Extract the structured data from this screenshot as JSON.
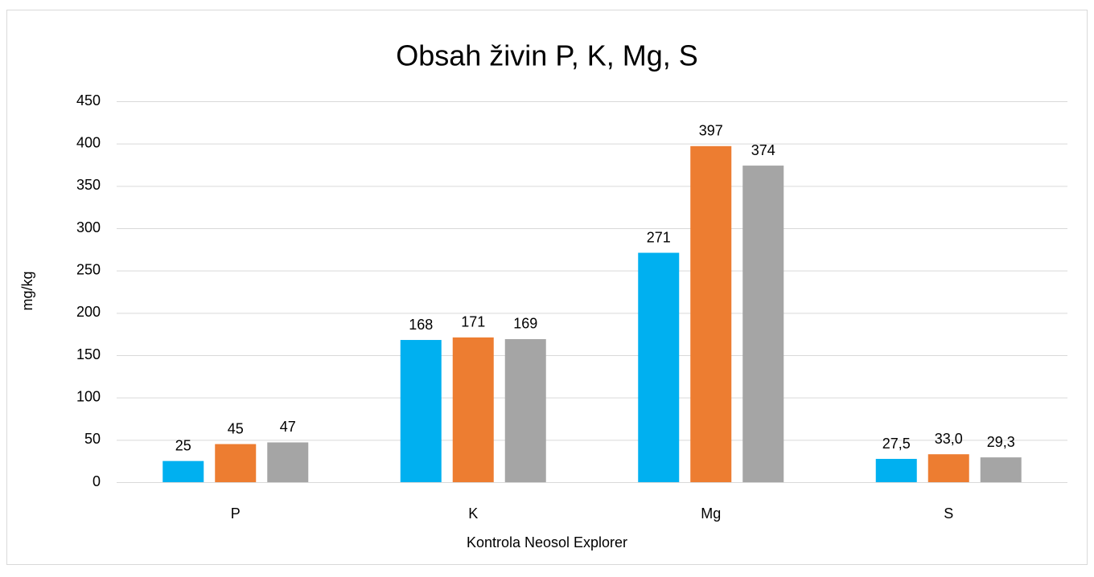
{
  "chart_data": {
    "type": "bar",
    "title": "Obsah živin P, K, Mg, S",
    "xlabel": "Kontrola Neosol Explorer",
    "ylabel": "mg/kg",
    "categories": [
      "P",
      "K",
      "Mg",
      "S"
    ],
    "series": [
      {
        "color": "#00b0f0",
        "values": [
          25,
          168,
          271,
          27.5
        ],
        "value_labels": [
          "25",
          "168",
          "271",
          "27,5"
        ]
      },
      {
        "color": "#ed7d31",
        "values": [
          45,
          171,
          397,
          33.0
        ],
        "value_labels": [
          "45",
          "171",
          "397",
          "33,0"
        ]
      },
      {
        "color": "#a5a5a5",
        "values": [
          47,
          169,
          374,
          29.3
        ],
        "value_labels": [
          "47",
          "169",
          "374",
          "29,3"
        ]
      }
    ],
    "ylim": [
      0,
      450
    ],
    "yticks": [
      0,
      50,
      100,
      150,
      200,
      250,
      300,
      350,
      400,
      450
    ],
    "grid": true
  }
}
